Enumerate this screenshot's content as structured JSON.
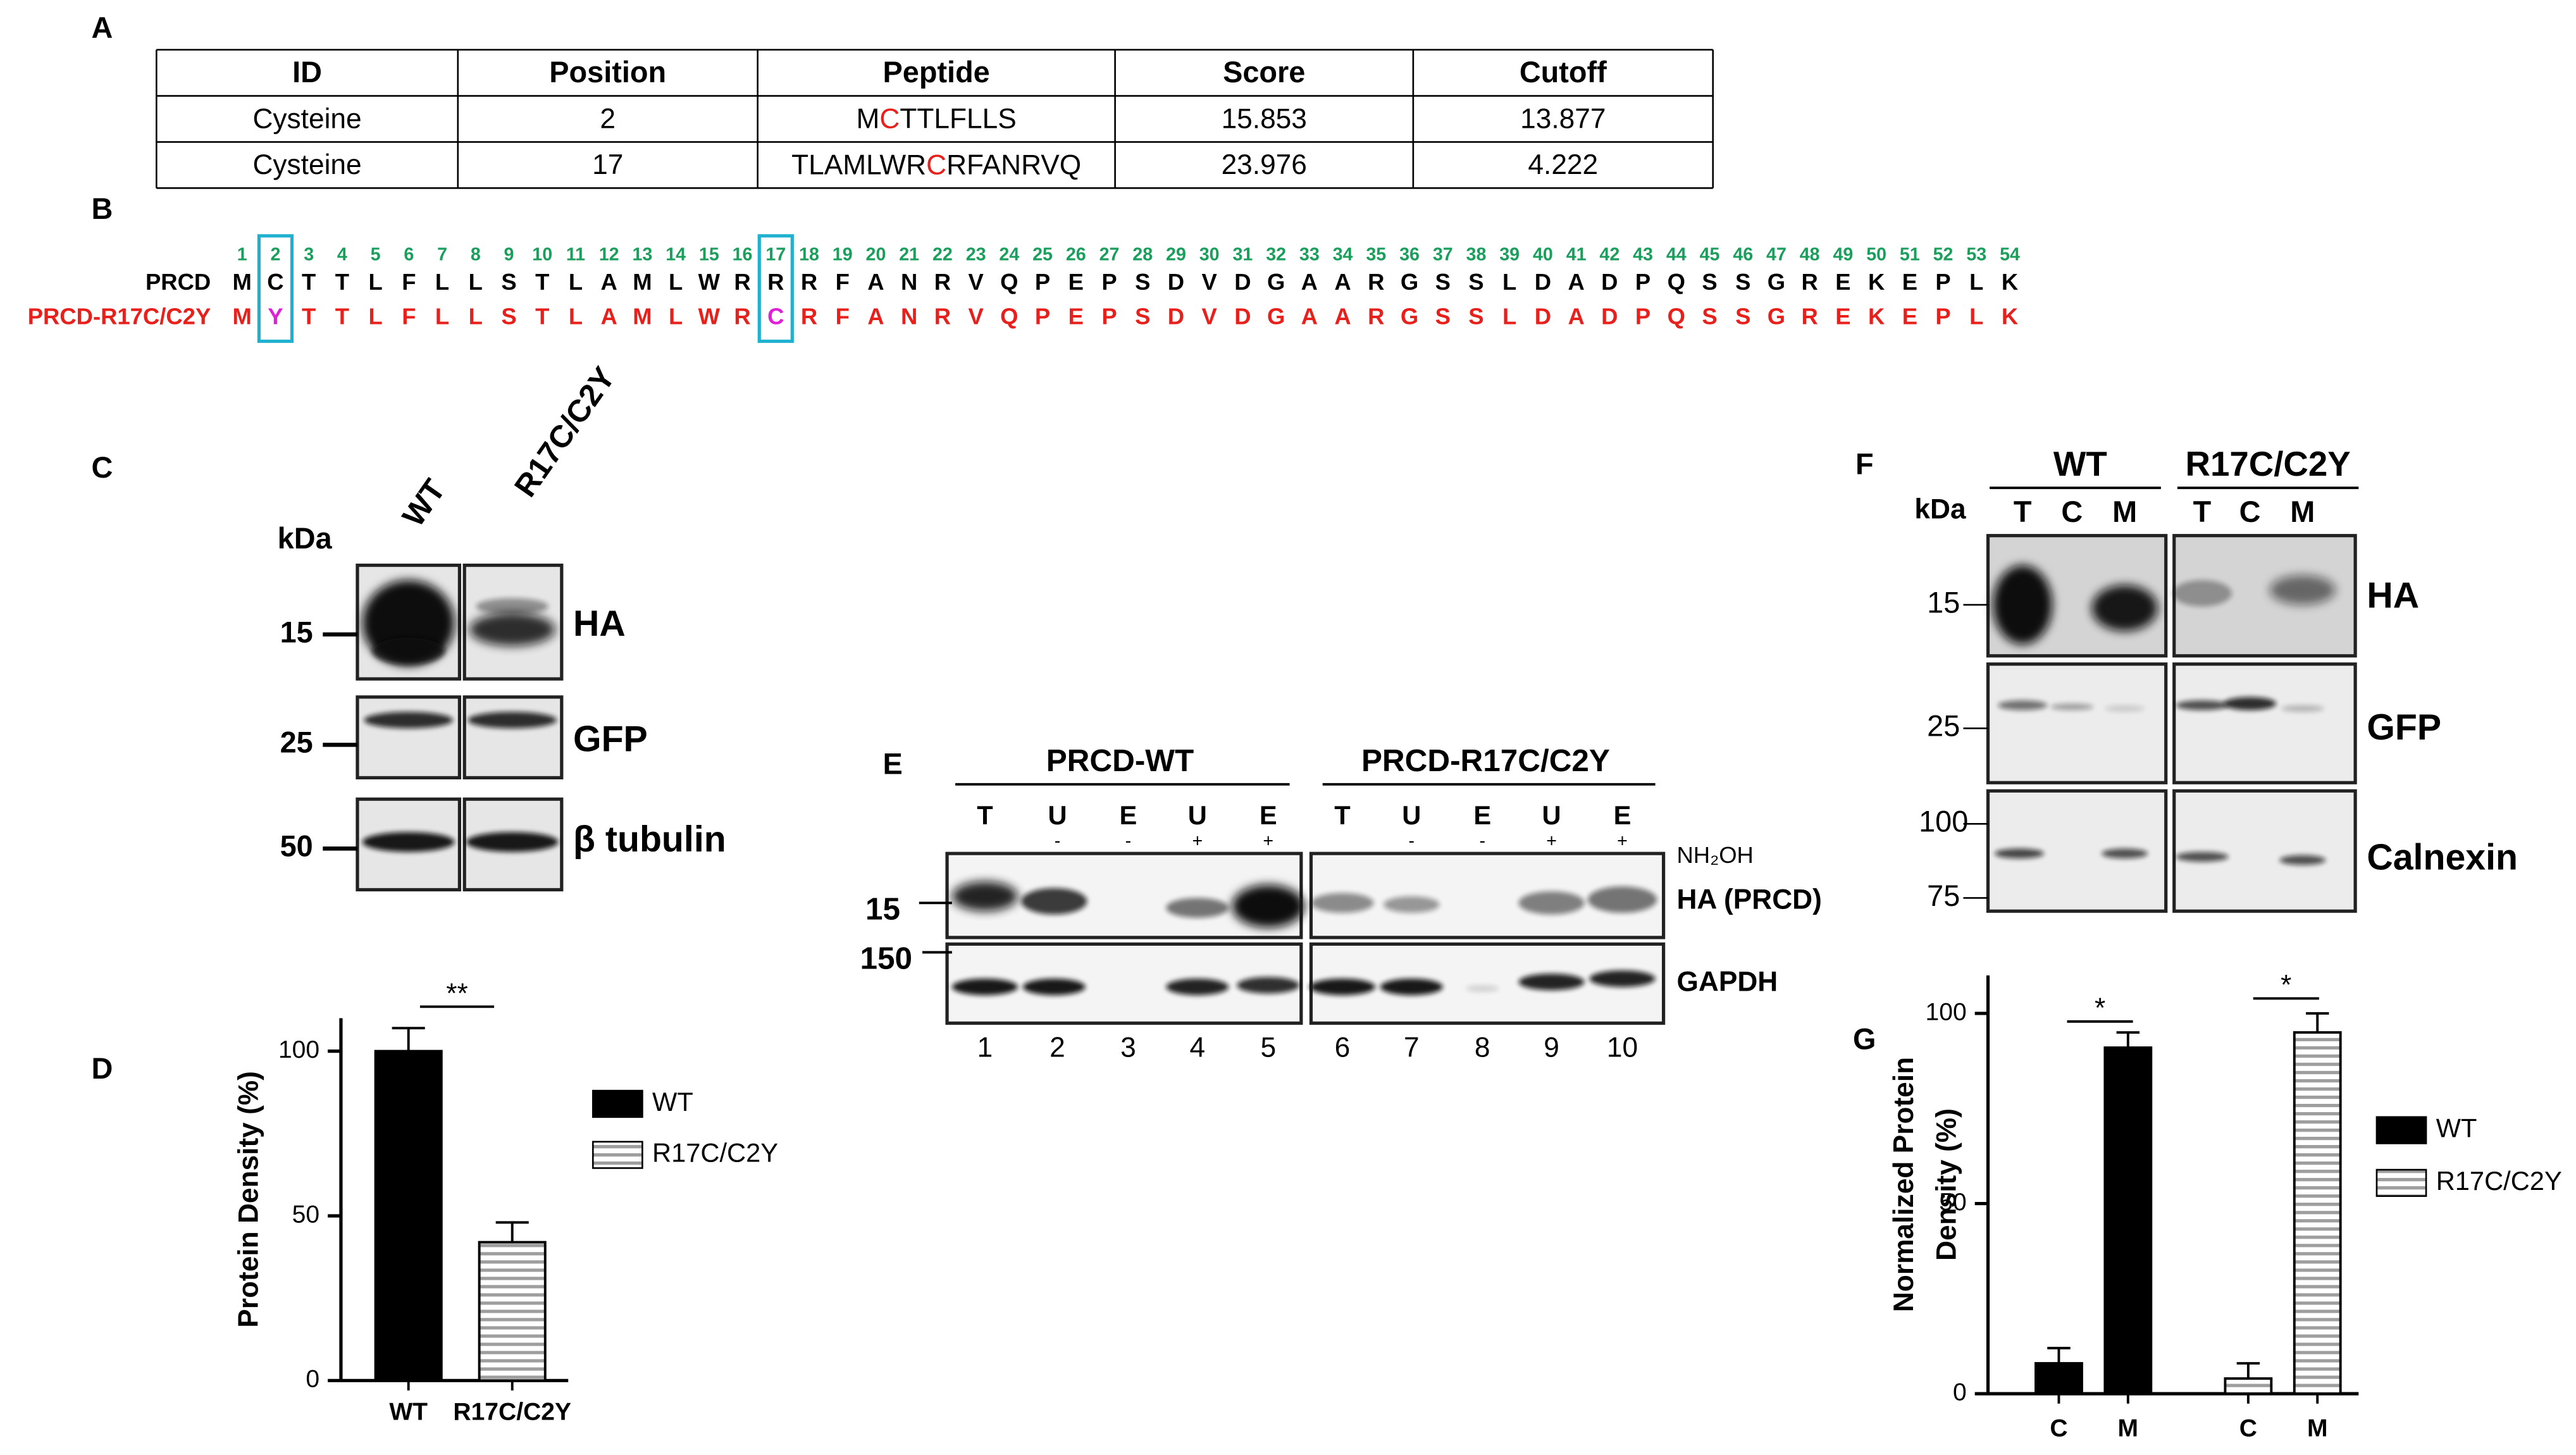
{
  "panel_labels": [
    "A",
    "B",
    "C",
    "D",
    "E",
    "F",
    "G"
  ],
  "table": {
    "header": [
      "ID",
      "Position",
      "Peptide",
      "Score",
      "Cutoff"
    ],
    "rows": [
      [
        "Cysteine",
        "2",
        [
          "M",
          "C",
          "TTLFLLS"
        ],
        "15.853",
        "13.877"
      ],
      [
        "Cysteine",
        "17",
        [
          "TLAMLWR",
          "C",
          "RFANRVQ"
        ],
        "23.976",
        "4.222"
      ]
    ]
  },
  "sequence": {
    "positions": [
      1,
      2,
      3,
      4,
      5,
      6,
      7,
      8,
      9,
      10,
      11,
      12,
      13,
      14,
      15,
      16,
      17,
      18,
      19,
      20,
      21,
      22,
      23,
      24,
      25,
      26,
      27,
      28,
      29,
      30,
      31,
      32,
      33,
      34,
      35,
      36,
      37,
      38,
      39,
      40,
      41,
      42,
      43,
      44,
      45,
      46,
      47,
      48,
      49,
      50,
      51,
      52,
      53,
      54
    ],
    "rows": [
      {
        "name": "PRCD",
        "residues": [
          "M",
          "C",
          "T",
          "T",
          "L",
          "F",
          "L",
          "L",
          "S",
          "T",
          "L",
          "A",
          "M",
          "L",
          "W",
          "R",
          "R",
          "R",
          "F",
          "A",
          "N",
          "R",
          "V",
          "Q",
          "P",
          "E",
          "P",
          "S",
          "D",
          "V",
          "D",
          "G",
          "A",
          "A",
          "R",
          "G",
          "S",
          "S",
          "L",
          "D",
          "A",
          "D",
          "P",
          "Q",
          "S",
          "S",
          "G",
          "R",
          "E",
          "K",
          "E",
          "P",
          "L",
          "K"
        ]
      },
      {
        "name": "PRCD-R17C/C2Y",
        "residues": [
          "M",
          "Y",
          "T",
          "T",
          "L",
          "F",
          "L",
          "L",
          "S",
          "T",
          "L",
          "A",
          "M",
          "L",
          "W",
          "R",
          "C",
          "R",
          "F",
          "A",
          "N",
          "R",
          "V",
          "Q",
          "P",
          "E",
          "P",
          "S",
          "D",
          "V",
          "D",
          "G",
          "A",
          "A",
          "R",
          "G",
          "S",
          "S",
          "L",
          "D",
          "A",
          "D",
          "P",
          "Q",
          "S",
          "S",
          "G",
          "R",
          "E",
          "K",
          "E",
          "P",
          "L",
          "K"
        ]
      }
    ]
  },
  "panel_c": {
    "unit": "kDa",
    "lanes": [
      "WT",
      "R17C/C2Y"
    ],
    "markers": [
      "15",
      "25",
      "50"
    ],
    "blots": [
      "HA",
      "GFP",
      "β tubulin"
    ]
  },
  "panel_e": {
    "groups": [
      "PRCD-WT",
      "PRCD-R17C/C2Y"
    ],
    "lanes": [
      "T",
      "U",
      "E",
      "U",
      "E",
      "T",
      "U",
      "E",
      "U",
      "E"
    ],
    "treatment_signs": [
      [
        "-",
        "-",
        "+",
        "+"
      ],
      [
        "-",
        "-",
        "+",
        "+"
      ]
    ],
    "treatment": "NH₂OH",
    "markers": [
      "15",
      "150"
    ],
    "blots": [
      "HA (PRCD)",
      "GAPDH"
    ],
    "lane_numbers": [
      1,
      2,
      3,
      4,
      5,
      6,
      7,
      8,
      9,
      10
    ]
  },
  "panel_f": {
    "unit": "kDa",
    "groups": [
      "WT",
      "R17C/C2Y"
    ],
    "lanes": [
      "T",
      "C",
      "M",
      "T",
      "C",
      "M"
    ],
    "markers": [
      "15",
      "25",
      "100",
      "75"
    ],
    "blots": [
      "HA",
      "GFP",
      "Calnexin"
    ]
  },
  "chart_data": [
    {
      "type": "bar",
      "ylabel": "Protein Density (%)",
      "categories": [
        "WT",
        "R17C/C2Y"
      ],
      "series": [
        {
          "name": "WT",
          "color": "#000000",
          "values": [
            100,
            null
          ],
          "errors": [
            7,
            null
          ]
        },
        {
          "name": "R17C/C2Y",
          "color": "#9e9e9e",
          "pattern": "stripes",
          "values": [
            null,
            42
          ],
          "errors": [
            null,
            6
          ]
        }
      ],
      "ylim": [
        0,
        110
      ],
      "yticks": [
        0,
        50,
        100
      ],
      "annotations": [
        "**"
      ],
      "legend": "right"
    },
    {
      "type": "bar",
      "ylabel": [
        "Normalized Protein",
        "Density (%)"
      ],
      "categories": [
        "C",
        "M",
        "C",
        "M"
      ],
      "series": [
        {
          "name": "WT",
          "color": "#000000",
          "values": [
            8,
            91,
            null,
            null
          ],
          "errors": [
            4,
            4,
            null,
            null
          ]
        },
        {
          "name": "R17C/C2Y",
          "color": "#9e9e9e",
          "pattern": "stripes",
          "values": [
            null,
            null,
            4,
            95
          ],
          "errors": [
            null,
            null,
            4,
            5
          ]
        }
      ],
      "ylim": [
        0,
        110
      ],
      "yticks": [
        0,
        50,
        100
      ],
      "annotations": [
        "*",
        "*"
      ],
      "legend": "right"
    }
  ]
}
